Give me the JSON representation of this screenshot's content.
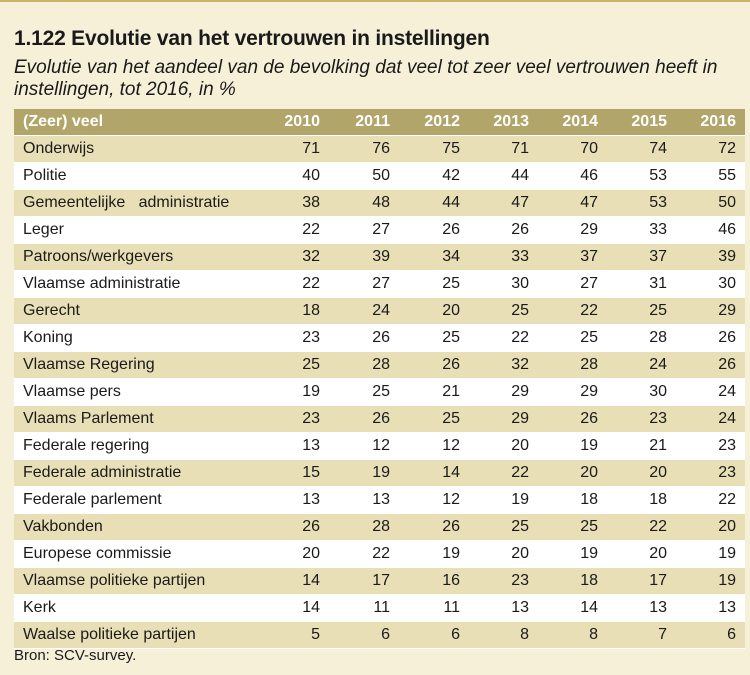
{
  "title": "1.122 Evolutie van het vertrouwen in instellingen",
  "subtitle": "Evolutie van het aandeel van de bevolking dat veel tot zeer veel vertrouwen heeft in instellingen, tot 2016, in %",
  "table": {
    "header_label": "(Zeer) veel",
    "years": [
      "2010",
      "2011",
      "2012",
      "2013",
      "2014",
      "2015",
      "2016"
    ],
    "rows": [
      {
        "label": "Onderwijs",
        "values": [
          "71",
          "76",
          "75",
          "71",
          "70",
          "74",
          "72"
        ]
      },
      {
        "label": "Politie",
        "values": [
          "40",
          "50",
          "42",
          "44",
          "46",
          "53",
          "55"
        ]
      },
      {
        "label": "Gemeentelijke   administratie",
        "values": [
          "38",
          "48",
          "44",
          "47",
          "47",
          "53",
          "50"
        ]
      },
      {
        "label": "Leger",
        "values": [
          "22",
          "27",
          "26",
          "26",
          "29",
          "33",
          "46"
        ]
      },
      {
        "label": "Patroons/werkgevers",
        "values": [
          "32",
          "39",
          "34",
          "33",
          "37",
          "37",
          "39"
        ]
      },
      {
        "label": "Vlaamse administratie",
        "values": [
          "22",
          "27",
          "25",
          "30",
          "27",
          "31",
          "30"
        ]
      },
      {
        "label": "Gerecht",
        "values": [
          "18",
          "24",
          "20",
          "25",
          "22",
          "25",
          "29"
        ]
      },
      {
        "label": "Koning",
        "values": [
          "23",
          "26",
          "25",
          "22",
          "25",
          "28",
          "26"
        ]
      },
      {
        "label": "Vlaamse Regering",
        "values": [
          "25",
          "28",
          "26",
          "32",
          "28",
          "24",
          "26"
        ]
      },
      {
        "label": "Vlaamse pers",
        "values": [
          "19",
          "25",
          "21",
          "29",
          "29",
          "30",
          "24"
        ]
      },
      {
        "label": "Vlaams Parlement",
        "values": [
          "23",
          "26",
          "25",
          "29",
          "26",
          "23",
          "24"
        ]
      },
      {
        "label": "Federale regering",
        "values": [
          "13",
          "12",
          "12",
          "20",
          "19",
          "21",
          "23"
        ]
      },
      {
        "label": "Federale administratie",
        "values": [
          "15",
          "19",
          "14",
          "22",
          "20",
          "20",
          "23"
        ]
      },
      {
        "label": "Federale parlement",
        "values": [
          "13",
          "13",
          "12",
          "19",
          "18",
          "18",
          "22"
        ]
      },
      {
        "label": "Vakbonden",
        "values": [
          "26",
          "28",
          "26",
          "25",
          "25",
          "22",
          "20"
        ]
      },
      {
        "label": "Europese commissie",
        "values": [
          "20",
          "22",
          "19",
          "20",
          "19",
          "20",
          "19"
        ]
      },
      {
        "label": "Vlaamse politieke partijen",
        "values": [
          "14",
          "17",
          "16",
          "23",
          "18",
          "17",
          "19"
        ]
      },
      {
        "label": "Kerk",
        "values": [
          "14",
          "11",
          "11",
          "13",
          "14",
          "13",
          "13"
        ]
      },
      {
        "label": "Waalse politieke partijen",
        "values": [
          "5",
          "6",
          "6",
          "8",
          "8",
          "7",
          "6"
        ]
      }
    ]
  },
  "source": "Bron: SCV-survey.",
  "colors": {
    "page_background": "#f6f0d9",
    "header_background": "#b2a56a",
    "row_band": "#e8dfb6",
    "row_plain": "#ffffff"
  }
}
